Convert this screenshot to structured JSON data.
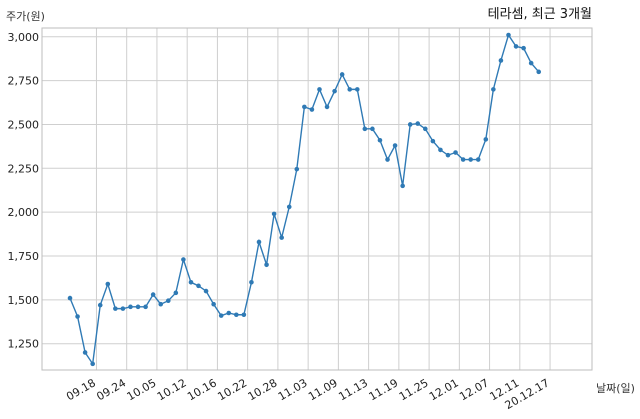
{
  "chart_data": {
    "type": "line",
    "title": "테라셈, 최근 3개월",
    "ylabel": "주가(원)",
    "xlabel": "날짜(일)",
    "ylim": [
      1100,
      3050
    ],
    "yticks": [
      1250,
      1500,
      1750,
      2000,
      2250,
      2500,
      2750,
      3000
    ],
    "ytick_labels": [
      "1,250",
      "1,500",
      "1,750",
      "2,000",
      "2,250",
      "2,500",
      "2,750",
      "3,000"
    ],
    "xtick_labels": [
      "09.18",
      "09.24",
      "10.05",
      "10.12",
      "10.16",
      "10.22",
      "10.28",
      "11.03",
      "11.09",
      "11.13",
      "11.19",
      "11.25",
      "12.01",
      "12.07",
      "12.11",
      "20.12.17"
    ],
    "xtick_indices": [
      3.5,
      7.5,
      11.5,
      15.5,
      19.5,
      23.5,
      27.5,
      31.5,
      35.5,
      39.5,
      43.5,
      47.5,
      51.5,
      55.5,
      59.5,
      63.5
    ],
    "grid": true,
    "series": [
      {
        "color": "#2f7ab5",
        "values": [
          1510,
          1405,
          1200,
          1135,
          1470,
          1590,
          1450,
          1450,
          1460,
          1460,
          1460,
          1530,
          1475,
          1495,
          1540,
          1730,
          1600,
          1580,
          1550,
          1475,
          1410,
          1425,
          1415,
          1415,
          1600,
          1830,
          1700,
          1990,
          1855,
          2030,
          2245,
          2600,
          2585,
          2700,
          2600,
          2690,
          2785,
          2700,
          2700,
          2475,
          2475,
          2410,
          2300,
          2380,
          2150,
          2500,
          2505,
          2475,
          2405,
          2355,
          2325,
          2340,
          2300,
          2300,
          2300,
          2415,
          2700,
          2865,
          3010,
          2945,
          2935,
          2850,
          2800
        ]
      }
    ]
  }
}
